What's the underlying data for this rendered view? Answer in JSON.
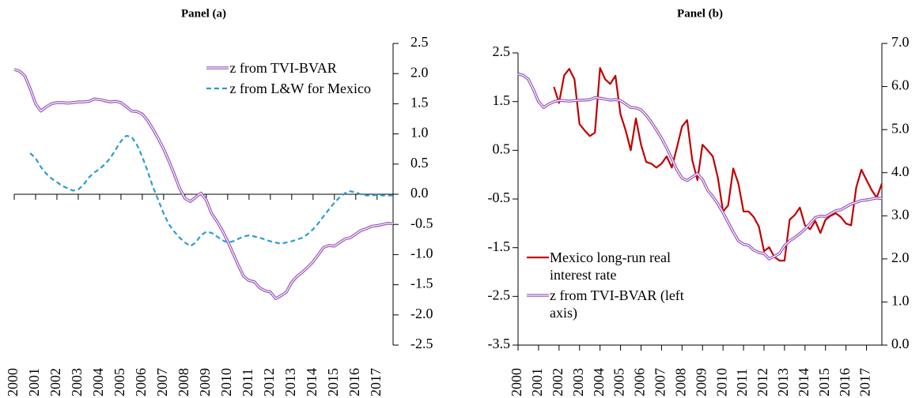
{
  "chart_data": [
    {
      "type": "line",
      "title": "Panel (a)",
      "categories": [
        "2000",
        null,
        null,
        null,
        "2001",
        null,
        null,
        null,
        "2002",
        null,
        null,
        null,
        "2003",
        null,
        null,
        null,
        "2004",
        null,
        null,
        null,
        "2005",
        null,
        null,
        null,
        "2006",
        null,
        null,
        null,
        "2007",
        null,
        null,
        null,
        "2008",
        null,
        null,
        null,
        "2009",
        null,
        null,
        null,
        "2010",
        null,
        null,
        null,
        "2011",
        null,
        null,
        null,
        "2012",
        null,
        null,
        null,
        "2013",
        null,
        null,
        null,
        "2014",
        null,
        null,
        null,
        "2015",
        null,
        null,
        null,
        "2016",
        null,
        null,
        null,
        "2017",
        null,
        null,
        null
      ],
      "series": [
        {
          "name": "z from TVI-BVAR",
          "color": "#9954BB",
          "style": "double",
          "values": [
            2.07,
            2.04,
            1.96,
            1.75,
            1.5,
            1.38,
            1.45,
            1.5,
            1.52,
            1.52,
            1.51,
            1.52,
            1.53,
            1.53,
            1.54,
            1.58,
            1.57,
            1.55,
            1.53,
            1.54,
            1.52,
            1.45,
            1.38,
            1.37,
            1.33,
            1.22,
            1.08,
            0.92,
            0.75,
            0.55,
            0.33,
            0.1,
            -0.07,
            -0.12,
            -0.05,
            0.02,
            -0.1,
            -0.32,
            -0.45,
            -0.6,
            -0.78,
            -0.98,
            -1.18,
            -1.36,
            -1.43,
            -1.45,
            -1.55,
            -1.6,
            -1.62,
            -1.73,
            -1.68,
            -1.62,
            -1.46,
            -1.36,
            -1.29,
            -1.21,
            -1.12,
            -1.0,
            -0.88,
            -0.85,
            -0.86,
            -0.8,
            -0.74,
            -0.72,
            -0.66,
            -0.6,
            -0.57,
            -0.53,
            -0.52,
            -0.5,
            -0.48,
            -0.49
          ]
        },
        {
          "name": "z from L&W for Mexico",
          "color": "#2E9BD0",
          "style": "dashed",
          "values": [
            null,
            null,
            null,
            0.68,
            0.6,
            0.45,
            0.34,
            0.26,
            0.2,
            0.14,
            0.1,
            0.06,
            0.08,
            0.16,
            0.28,
            0.36,
            0.42,
            0.5,
            0.6,
            0.74,
            0.88,
            0.97,
            0.95,
            0.82,
            0.62,
            0.38,
            0.12,
            -0.1,
            -0.32,
            -0.5,
            -0.62,
            -0.72,
            -0.8,
            -0.86,
            -0.8,
            -0.68,
            -0.62,
            -0.64,
            -0.7,
            -0.76,
            -0.8,
            -0.78,
            -0.74,
            -0.7,
            -0.68,
            -0.7,
            -0.72,
            -0.75,
            -0.78,
            -0.8,
            -0.82,
            -0.8,
            -0.78,
            -0.75,
            -0.72,
            -0.66,
            -0.58,
            -0.48,
            -0.36,
            -0.25,
            -0.14,
            -0.05,
            0.02,
            0.05,
            0.03,
            0.0,
            -0.02,
            -0.02,
            -0.01,
            -0.02,
            -0.02,
            -0.02
          ]
        }
      ],
      "ylim": [
        -2.5,
        2.5
      ],
      "yticks": [
        2.5,
        {
          "value": 2,
          "label": "2.0"
        },
        1.5,
        {
          "value": 1,
          "label": "1.0"
        },
        0.5,
        {
          "value": 0,
          "label": "0.0"
        },
        -0.5,
        {
          "value": -1,
          "label": "-1.0"
        },
        -1.5,
        {
          "value": -2,
          "label": "-2.0"
        },
        -2.5
      ],
      "y_axis_position": "right",
      "x_axis_position": "zero",
      "legend": "upper right"
    },
    {
      "type": "line",
      "title": "Panel (b)",
      "categories": [
        "2000",
        null,
        null,
        null,
        "2001",
        null,
        null,
        null,
        "2002",
        null,
        null,
        null,
        "2003",
        null,
        null,
        null,
        "2004",
        null,
        null,
        null,
        "2005",
        null,
        null,
        null,
        "2006",
        null,
        null,
        null,
        "2007",
        null,
        null,
        null,
        "2008",
        null,
        null,
        null,
        "2009",
        null,
        null,
        null,
        "2010",
        null,
        null,
        null,
        "2011",
        null,
        null,
        null,
        "2012",
        null,
        null,
        null,
        "2013",
        null,
        null,
        null,
        "2014",
        null,
        null,
        null,
        "2015",
        null,
        null,
        null,
        "2016",
        null,
        null,
        null,
        "2017",
        null,
        null,
        null
      ],
      "series": [
        {
          "name": "Mexico long-run real interest rate",
          "color": "#C00000",
          "style": "solid",
          "axis": "y2",
          "values": [
            null,
            null,
            null,
            null,
            null,
            null,
            null,
            5.99,
            5.62,
            6.26,
            6.41,
            6.17,
            5.13,
            4.98,
            4.85,
            4.93,
            6.43,
            6.17,
            6.06,
            6.25,
            5.35,
            4.98,
            4.52,
            5.26,
            4.65,
            4.25,
            4.21,
            4.12,
            4.21,
            4.38,
            4.12,
            4.58,
            5.07,
            5.22,
            4.29,
            3.83,
            4.65,
            4.52,
            4.38,
            3.88,
            3.1,
            3.24,
            4.1,
            3.75,
            3.1,
            3.1,
            2.97,
            2.75,
            2.18,
            2.27,
            2.05,
            1.96,
            1.96,
            2.91,
            3.02,
            3.19,
            2.78,
            2.69,
            2.88,
            2.6,
            2.91,
            3.0,
            3.06,
            2.97,
            2.82,
            2.78,
            3.66,
            4.07,
            3.83,
            3.6,
            3.42,
            3.75
          ]
        },
        {
          "name": "z from TVI-BVAR (left axis)",
          "color": "#9954BB",
          "style": "double",
          "values": [
            2.07,
            2.04,
            1.96,
            1.75,
            1.5,
            1.38,
            1.45,
            1.5,
            1.52,
            1.52,
            1.51,
            1.52,
            1.53,
            1.53,
            1.54,
            1.58,
            1.57,
            1.55,
            1.53,
            1.54,
            1.52,
            1.45,
            1.38,
            1.37,
            1.33,
            1.22,
            1.08,
            0.92,
            0.75,
            0.55,
            0.33,
            0.1,
            -0.07,
            -0.12,
            -0.05,
            0.02,
            -0.1,
            -0.32,
            -0.45,
            -0.6,
            -0.78,
            -0.98,
            -1.18,
            -1.36,
            -1.43,
            -1.45,
            -1.55,
            -1.6,
            -1.62,
            -1.73,
            -1.68,
            -1.62,
            -1.46,
            -1.36,
            -1.29,
            -1.21,
            -1.12,
            -1.0,
            -0.88,
            -0.85,
            -0.86,
            -0.8,
            -0.74,
            -0.72,
            -0.66,
            -0.6,
            -0.57,
            -0.53,
            -0.52,
            -0.5,
            -0.48,
            -0.49
          ]
        }
      ],
      "ylim": [
        -3.5,
        2.5
      ],
      "yticks": [
        -3.5,
        -2.5,
        -1.5,
        -0.5,
        0.5,
        1.5,
        2.5
      ],
      "y2lim": [
        0,
        7
      ],
      "y2ticks": [
        {
          "value": 0,
          "label": "0.0"
        },
        {
          "value": 1,
          "label": "1.0"
        },
        {
          "value": 2,
          "label": "2.0"
        },
        {
          "value": 3,
          "label": "3.0"
        },
        {
          "value": 4,
          "label": "4.0"
        },
        {
          "value": 5,
          "label": "5.0"
        },
        {
          "value": 6,
          "label": "6.0"
        },
        {
          "value": 7,
          "label": "7.0"
        }
      ],
      "y_axis_position": "left",
      "x_axis_position": "bottom",
      "legend": "lower left"
    }
  ]
}
